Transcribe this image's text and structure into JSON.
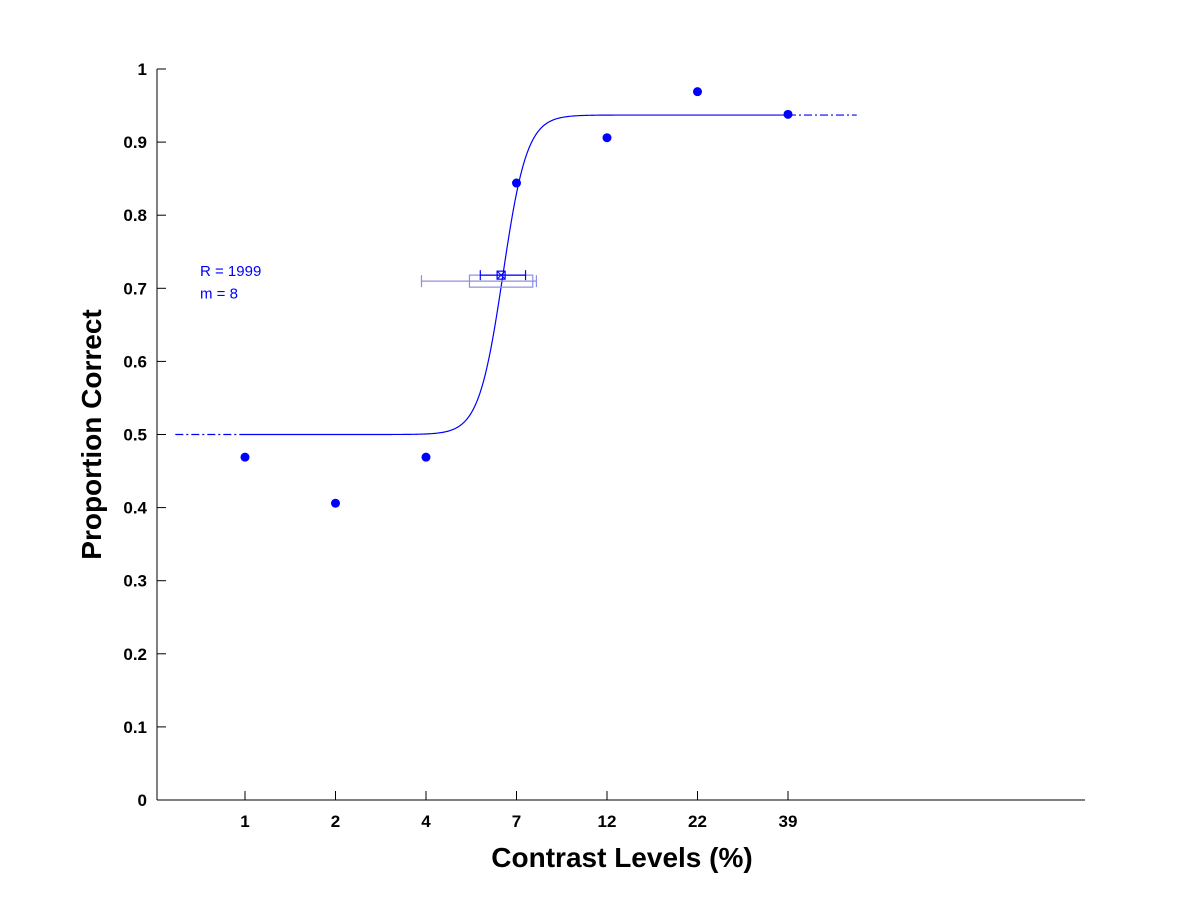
{
  "chart_data": {
    "type": "scatter",
    "title": "",
    "xlabel": "Contrast Levels (%)",
    "ylabel": "Proportion Correct",
    "x_tick_labels": [
      "1",
      "2",
      "4",
      "7",
      "12",
      "22",
      "39"
    ],
    "y_tick_labels": [
      "0",
      "0.1",
      "0.2",
      "0.3",
      "0.4",
      "0.5",
      "0.6",
      "0.7",
      "0.8",
      "0.9",
      "1"
    ],
    "ylim": [
      0,
      1
    ],
    "grid": false,
    "series": [
      {
        "marker": "filled-circle",
        "color": "#0000ff",
        "points": [
          {
            "x": "1",
            "y": 0.469
          },
          {
            "x": "2",
            "y": 0.406
          },
          {
            "x": "4",
            "y": 0.469
          },
          {
            "x": "7",
            "y": 0.844
          },
          {
            "x": "12",
            "y": 0.906
          },
          {
            "x": "22",
            "y": 0.969
          },
          {
            "x": "39",
            "y": 0.938
          }
        ]
      }
    ],
    "fit_curve": {
      "type": "sigmoid",
      "color": "#0000ff",
      "lower_asymptote": 0.5,
      "upper_asymptote": 0.937,
      "threshold_level_index": 2.85,
      "slope": 7.5
    },
    "threshold": {
      "level_index": 2.83,
      "proportion": 0.718,
      "ci_inner": [
        2.6,
        3.1
      ],
      "ci_outer": [
        1.95,
        3.22
      ],
      "box": [
        2.48,
        3.18
      ]
    },
    "annotations": [
      "R = 1999",
      "m = 8"
    ]
  },
  "colors": {
    "data": "#0000ff",
    "ci_box": "#8f8fe0",
    "axis": "#000000"
  }
}
